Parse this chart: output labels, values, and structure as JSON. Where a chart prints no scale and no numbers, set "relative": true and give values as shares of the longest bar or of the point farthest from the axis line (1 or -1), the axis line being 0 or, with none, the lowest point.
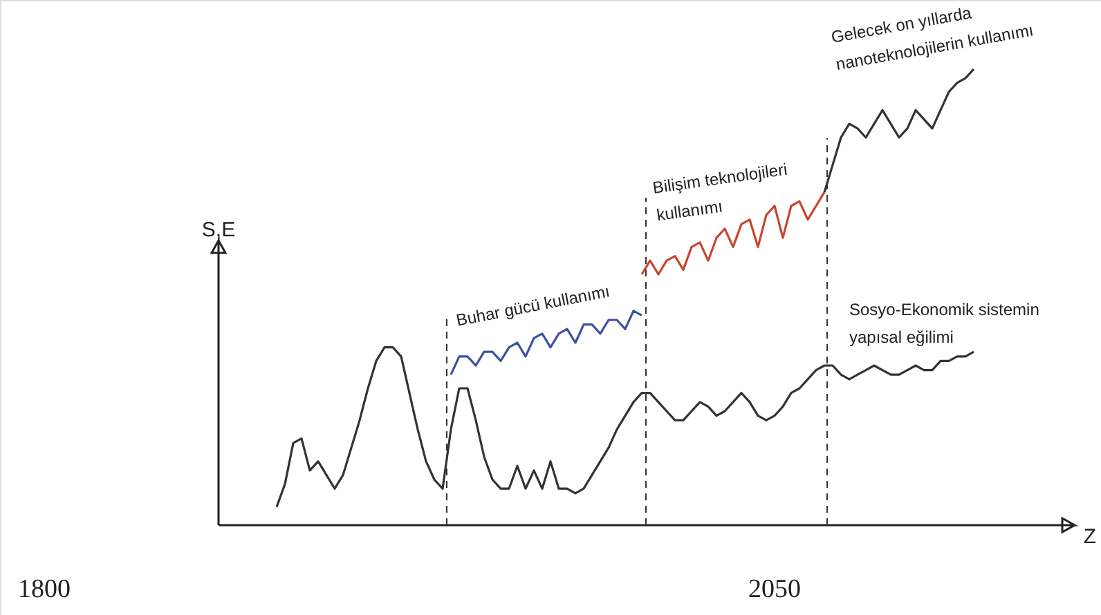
{
  "chart_data": {
    "type": "line",
    "relative": true,
    "ylabel": "S,E",
    "categories": [
      null,
      null,
      null,
      null,
      null,
      null,
      null,
      null,
      null,
      null,
      null,
      null,
      null,
      null,
      null,
      null,
      null,
      null,
      null,
      null,
      null,
      null,
      null,
      null,
      null,
      null,
      null,
      null,
      null,
      null,
      null,
      null,
      null,
      null,
      null,
      null,
      null,
      null,
      null,
      null,
      null,
      null,
      null,
      null,
      null,
      null,
      null,
      null,
      null,
      null,
      null,
      null,
      null,
      null,
      null,
      null,
      null,
      null,
      null,
      null,
      null,
      null,
      null,
      null,
      null,
      null,
      null,
      null,
      null,
      null,
      null,
      null,
      null,
      null,
      null,
      null,
      null,
      null,
      null,
      null,
      null,
      null,
      null,
      null,
      null
    ],
    "series": [
      {
        "color": "#333333",
        "values": [
          0.04,
          0.09,
          0.18,
          0.19,
          0.12,
          0.14,
          0.11,
          0.08,
          0.11,
          0.17,
          0.23,
          0.3,
          0.36,
          0.39,
          0.39,
          0.37,
          0.29,
          0.21,
          0.14,
          0.1,
          0.08,
          0.21,
          0.3,
          0.3,
          0.23,
          0.15,
          0.1,
          0.08,
          0.08,
          0.13,
          0.08,
          0.12,
          0.08,
          0.14,
          0.08,
          0.08,
          0.07,
          0.08,
          0.11,
          0.14,
          0.17,
          0.21,
          0.24,
          0.27,
          0.29,
          0.29,
          0.27,
          0.25,
          0.23,
          0.23,
          0.25,
          0.27,
          0.26,
          0.24,
          0.25,
          0.27,
          0.29,
          0.27,
          0.24,
          0.23,
          0.24,
          0.26,
          0.29,
          0.3,
          0.32,
          0.34,
          0.35,
          0.35,
          0.33,
          0.32,
          0.33,
          0.34,
          0.35,
          0.34,
          0.33,
          0.33,
          0.34,
          0.35,
          0.34,
          0.34,
          0.36,
          0.36,
          0.37,
          0.37,
          0.38
        ]
      },
      {
        "color": "#3d51a3",
        "values": [
          null,
          null,
          null,
          null,
          null,
          null,
          null,
          null,
          null,
          null,
          null,
          null,
          null,
          null,
          null,
          null,
          null,
          null,
          null,
          null,
          null,
          0.33,
          0.37,
          0.37,
          0.35,
          0.38,
          0.38,
          0.36,
          0.39,
          0.4,
          0.37,
          0.41,
          0.42,
          0.39,
          0.42,
          0.43,
          0.4,
          0.44,
          0.44,
          0.42,
          0.45,
          0.45,
          0.43,
          0.47,
          0.46,
          null,
          null,
          null,
          null,
          null,
          null,
          null,
          null,
          null,
          null,
          null,
          null,
          null,
          null,
          null,
          null,
          null,
          null,
          null,
          null,
          null,
          null,
          null,
          null,
          null,
          null,
          null,
          null,
          null,
          null,
          null,
          null,
          null,
          null,
          null,
          null,
          null,
          null,
          null,
          null
        ]
      },
      {
        "color": "#c8462e",
        "values": [
          null,
          null,
          null,
          null,
          null,
          null,
          null,
          null,
          null,
          null,
          null,
          null,
          null,
          null,
          null,
          null,
          null,
          null,
          null,
          null,
          null,
          null,
          null,
          null,
          null,
          null,
          null,
          null,
          null,
          null,
          null,
          null,
          null,
          null,
          null,
          null,
          null,
          null,
          null,
          null,
          null,
          null,
          null,
          null,
          0.55,
          0.58,
          0.55,
          0.58,
          0.59,
          0.56,
          0.61,
          0.62,
          0.58,
          0.63,
          0.65,
          0.61,
          0.66,
          0.67,
          0.61,
          0.68,
          0.7,
          0.63,
          0.7,
          0.71,
          0.67,
          0.7,
          0.73,
          null,
          null,
          null,
          null,
          null,
          null,
          null,
          null,
          null,
          null,
          null,
          null,
          null,
          null,
          null,
          null,
          null,
          null
        ]
      },
      {
        "color": "#333333",
        "values": [
          null,
          null,
          null,
          null,
          null,
          null,
          null,
          null,
          null,
          null,
          null,
          null,
          null,
          null,
          null,
          null,
          null,
          null,
          null,
          null,
          null,
          null,
          null,
          null,
          null,
          null,
          null,
          null,
          null,
          null,
          null,
          null,
          null,
          null,
          null,
          null,
          null,
          null,
          null,
          null,
          null,
          null,
          null,
          null,
          null,
          null,
          null,
          null,
          null,
          null,
          null,
          null,
          null,
          null,
          null,
          null,
          null,
          null,
          null,
          null,
          null,
          null,
          null,
          null,
          null,
          null,
          0.73,
          0.79,
          0.85,
          0.88,
          0.87,
          0.85,
          0.88,
          0.91,
          0.88,
          0.85,
          0.87,
          0.91,
          0.89,
          0.87,
          0.91,
          0.95,
          0.97,
          0.98,
          1
        ]
      }
    ],
    "annotations": [
      "Z",
      "Buhar gücü kullanımı",
      "Bilişim teknolojileri\nkullanımı",
      "Gelecek on yıllarda\nnanoteknolojilerin kullanımı",
      "Sosyo-Ekonomik sistemin\nyapısal eğilimi",
      "1800",
      "2050"
    ]
  }
}
